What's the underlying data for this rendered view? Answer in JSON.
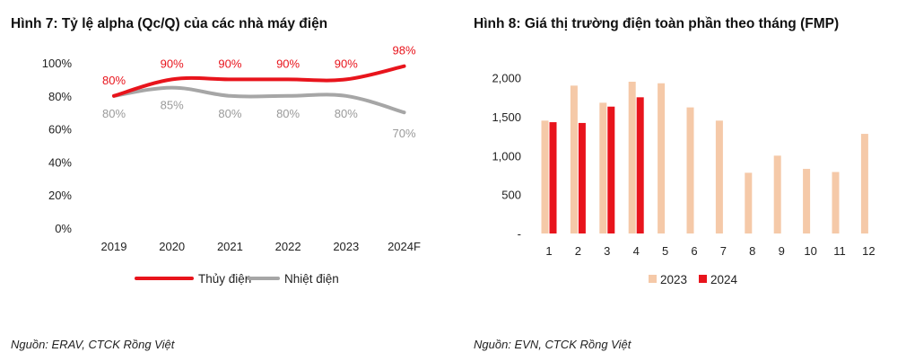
{
  "left": {
    "title": "Hình 7: Tỷ lệ alpha (Qc/Q) của các nhà máy điện",
    "source": "Nguồn: ERAV, CTCK Rồng Việt"
  },
  "right": {
    "title": "Hình 8: Giá thị trường điện toàn phần theo tháng (FMP)",
    "source": "Nguồn: EVN, CTCK Rồng Việt"
  },
  "chart_data": [
    {
      "type": "line",
      "title": "Hình 7: Tỷ lệ alpha (Qc/Q) của các nhà máy điện",
      "categories": [
        "2019",
        "2020",
        "2021",
        "2022",
        "2023",
        "2024F"
      ],
      "y_tick_labels": [
        "0%",
        "20%",
        "40%",
        "60%",
        "80%",
        "100%"
      ],
      "ylim": [
        0,
        100
      ],
      "grid": false,
      "legend_position": "bottom",
      "series": [
        {
          "name": "Thủy điện",
          "values": [
            80,
            90,
            90,
            90,
            90,
            98
          ],
          "labels": [
            "80%",
            "90%",
            "90%",
            "90%",
            "90%",
            "98%"
          ],
          "color": "#e8141c"
        },
        {
          "name": "Nhiệt điện",
          "values": [
            80,
            85,
            80,
            80,
            80,
            70
          ],
          "labels": [
            "80%",
            "85%",
            "80%",
            "80%",
            "80%",
            "70%"
          ],
          "color": "#a6a6a6"
        }
      ]
    },
    {
      "type": "bar",
      "title": "Hình 8: Giá thị trường điện toàn phần theo tháng (FMP)",
      "categories": [
        "1",
        "2",
        "3",
        "4",
        "5",
        "6",
        "7",
        "8",
        "9",
        "10",
        "11",
        "12"
      ],
      "y_tick_labels": [
        "-",
        "500",
        "1,000",
        "1,500",
        "2,000"
      ],
      "ylim": [
        0,
        2250
      ],
      "grid": false,
      "legend_position": "bottom",
      "series": [
        {
          "name": "2023",
          "color": "#f5c9a8",
          "values": [
            1450,
            1900,
            1680,
            1950,
            1930,
            1620,
            1450,
            780,
            1000,
            830,
            790,
            1280
          ]
        },
        {
          "name": "2024",
          "color": "#e8141c",
          "values": [
            1430,
            1420,
            1630,
            1750,
            null,
            null,
            null,
            null,
            null,
            null,
            null,
            null
          ]
        }
      ]
    }
  ]
}
